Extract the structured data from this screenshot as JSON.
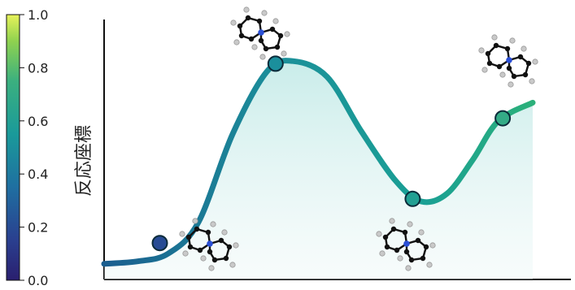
{
  "chart_data": {
    "type": "line",
    "title": "",
    "xlabel": "",
    "ylabel": "反応座標",
    "ylim": [
      0,
      1.0
    ],
    "grid": false,
    "legend": "none",
    "colorbar": {
      "colormap": "viridis",
      "ticks": [
        "0.0",
        "0.2",
        "0.4",
        "0.6",
        "0.8",
        "1.0"
      ],
      "range": [
        0.0,
        1.0
      ]
    },
    "series": [
      {
        "values_x": [
          0.0,
          0.08,
          0.15,
          0.22,
          0.3,
          0.38,
          0.44,
          0.52,
          0.6,
          0.68,
          0.74,
          0.8,
          0.86,
          0.92,
          1.0
        ],
        "values_y": [
          0.06,
          0.07,
          0.1,
          0.22,
          0.56,
          0.8,
          0.84,
          0.78,
          0.57,
          0.38,
          0.3,
          0.33,
          0.46,
          0.61,
          0.68
        ]
      }
    ],
    "markers": [
      {
        "x": 0.13,
        "y": 0.14,
        "colorValue": 0.25
      },
      {
        "x": 0.4,
        "y": 0.83,
        "colorValue": 0.55
      },
      {
        "x": 0.72,
        "y": 0.31,
        "colorValue": 0.65
      },
      {
        "x": 0.93,
        "y": 0.62,
        "colorValue": 0.75
      }
    ],
    "molecule_glyphs": [
      {
        "name": "molecule-1-icon",
        "near": "marker-0"
      },
      {
        "name": "molecule-2-icon",
        "near": "marker-1"
      },
      {
        "name": "molecule-3-icon",
        "near": "marker-2"
      },
      {
        "name": "molecule-4-icon",
        "near": "marker-3"
      }
    ]
  }
}
